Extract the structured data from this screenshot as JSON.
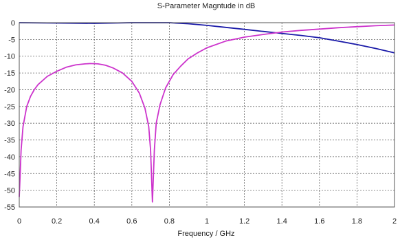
{
  "chart_data": {
    "type": "line",
    "title": "S-Parameter Magntude in dB",
    "xlabel": "Frequency / GHz",
    "ylabel": "",
    "xlim": [
      0,
      2
    ],
    "ylim": [
      -55,
      0
    ],
    "grid": true,
    "x_ticks": [
      "0",
      "0.2",
      "0.4",
      "0.6",
      "0.8",
      "1",
      "1.2",
      "1.4",
      "1.6",
      "1.8",
      "2"
    ],
    "y_ticks": [
      "0",
      "-5",
      "-10",
      "-15",
      "-20",
      "-25",
      "-30",
      "-35",
      "-40",
      "-45",
      "-50",
      "-55"
    ],
    "series": [
      {
        "color": "#1a1aa8",
        "x": [
          0,
          0.2,
          0.4,
          0.6,
          0.8,
          0.9,
          1.0,
          1.1,
          1.2,
          1.3,
          1.4,
          1.5,
          1.6,
          1.7,
          1.8,
          1.9,
          2.0
        ],
        "y": [
          0,
          -0.1,
          -0.2,
          0,
          0,
          -0.3,
          -0.8,
          -1.4,
          -2.0,
          -2.6,
          -3.2,
          -3.8,
          -4.5,
          -5.5,
          -6.5,
          -7.7,
          -9.0
        ]
      },
      {
        "color": "#cc33cc",
        "x": [
          0,
          0.005,
          0.01,
          0.02,
          0.04,
          0.06,
          0.08,
          0.1,
          0.15,
          0.2,
          0.25,
          0.3,
          0.35,
          0.38,
          0.42,
          0.46,
          0.5,
          0.55,
          0.6,
          0.64,
          0.67,
          0.69,
          0.7,
          0.71,
          0.72,
          0.73,
          0.75,
          0.78,
          0.82,
          0.86,
          0.9,
          0.95,
          1.0,
          1.1,
          1.2,
          1.3,
          1.4,
          1.5,
          1.6,
          1.7,
          1.8,
          1.9,
          2.0
        ],
        "y": [
          -52,
          -45,
          -38,
          -31,
          -25,
          -22,
          -20,
          -18.5,
          -16,
          -14.5,
          -13.3,
          -12.6,
          -12.3,
          -12.2,
          -12.3,
          -12.7,
          -13.5,
          -15,
          -17.5,
          -21,
          -25.5,
          -31,
          -38,
          -53.5,
          -38,
          -30,
          -24.5,
          -19.5,
          -15.5,
          -13,
          -10.8,
          -9,
          -7.5,
          -5.5,
          -4.3,
          -3.5,
          -2.8,
          -2.3,
          -1.9,
          -1.5,
          -1.2,
          -0.9,
          -0.7
        ]
      }
    ]
  }
}
